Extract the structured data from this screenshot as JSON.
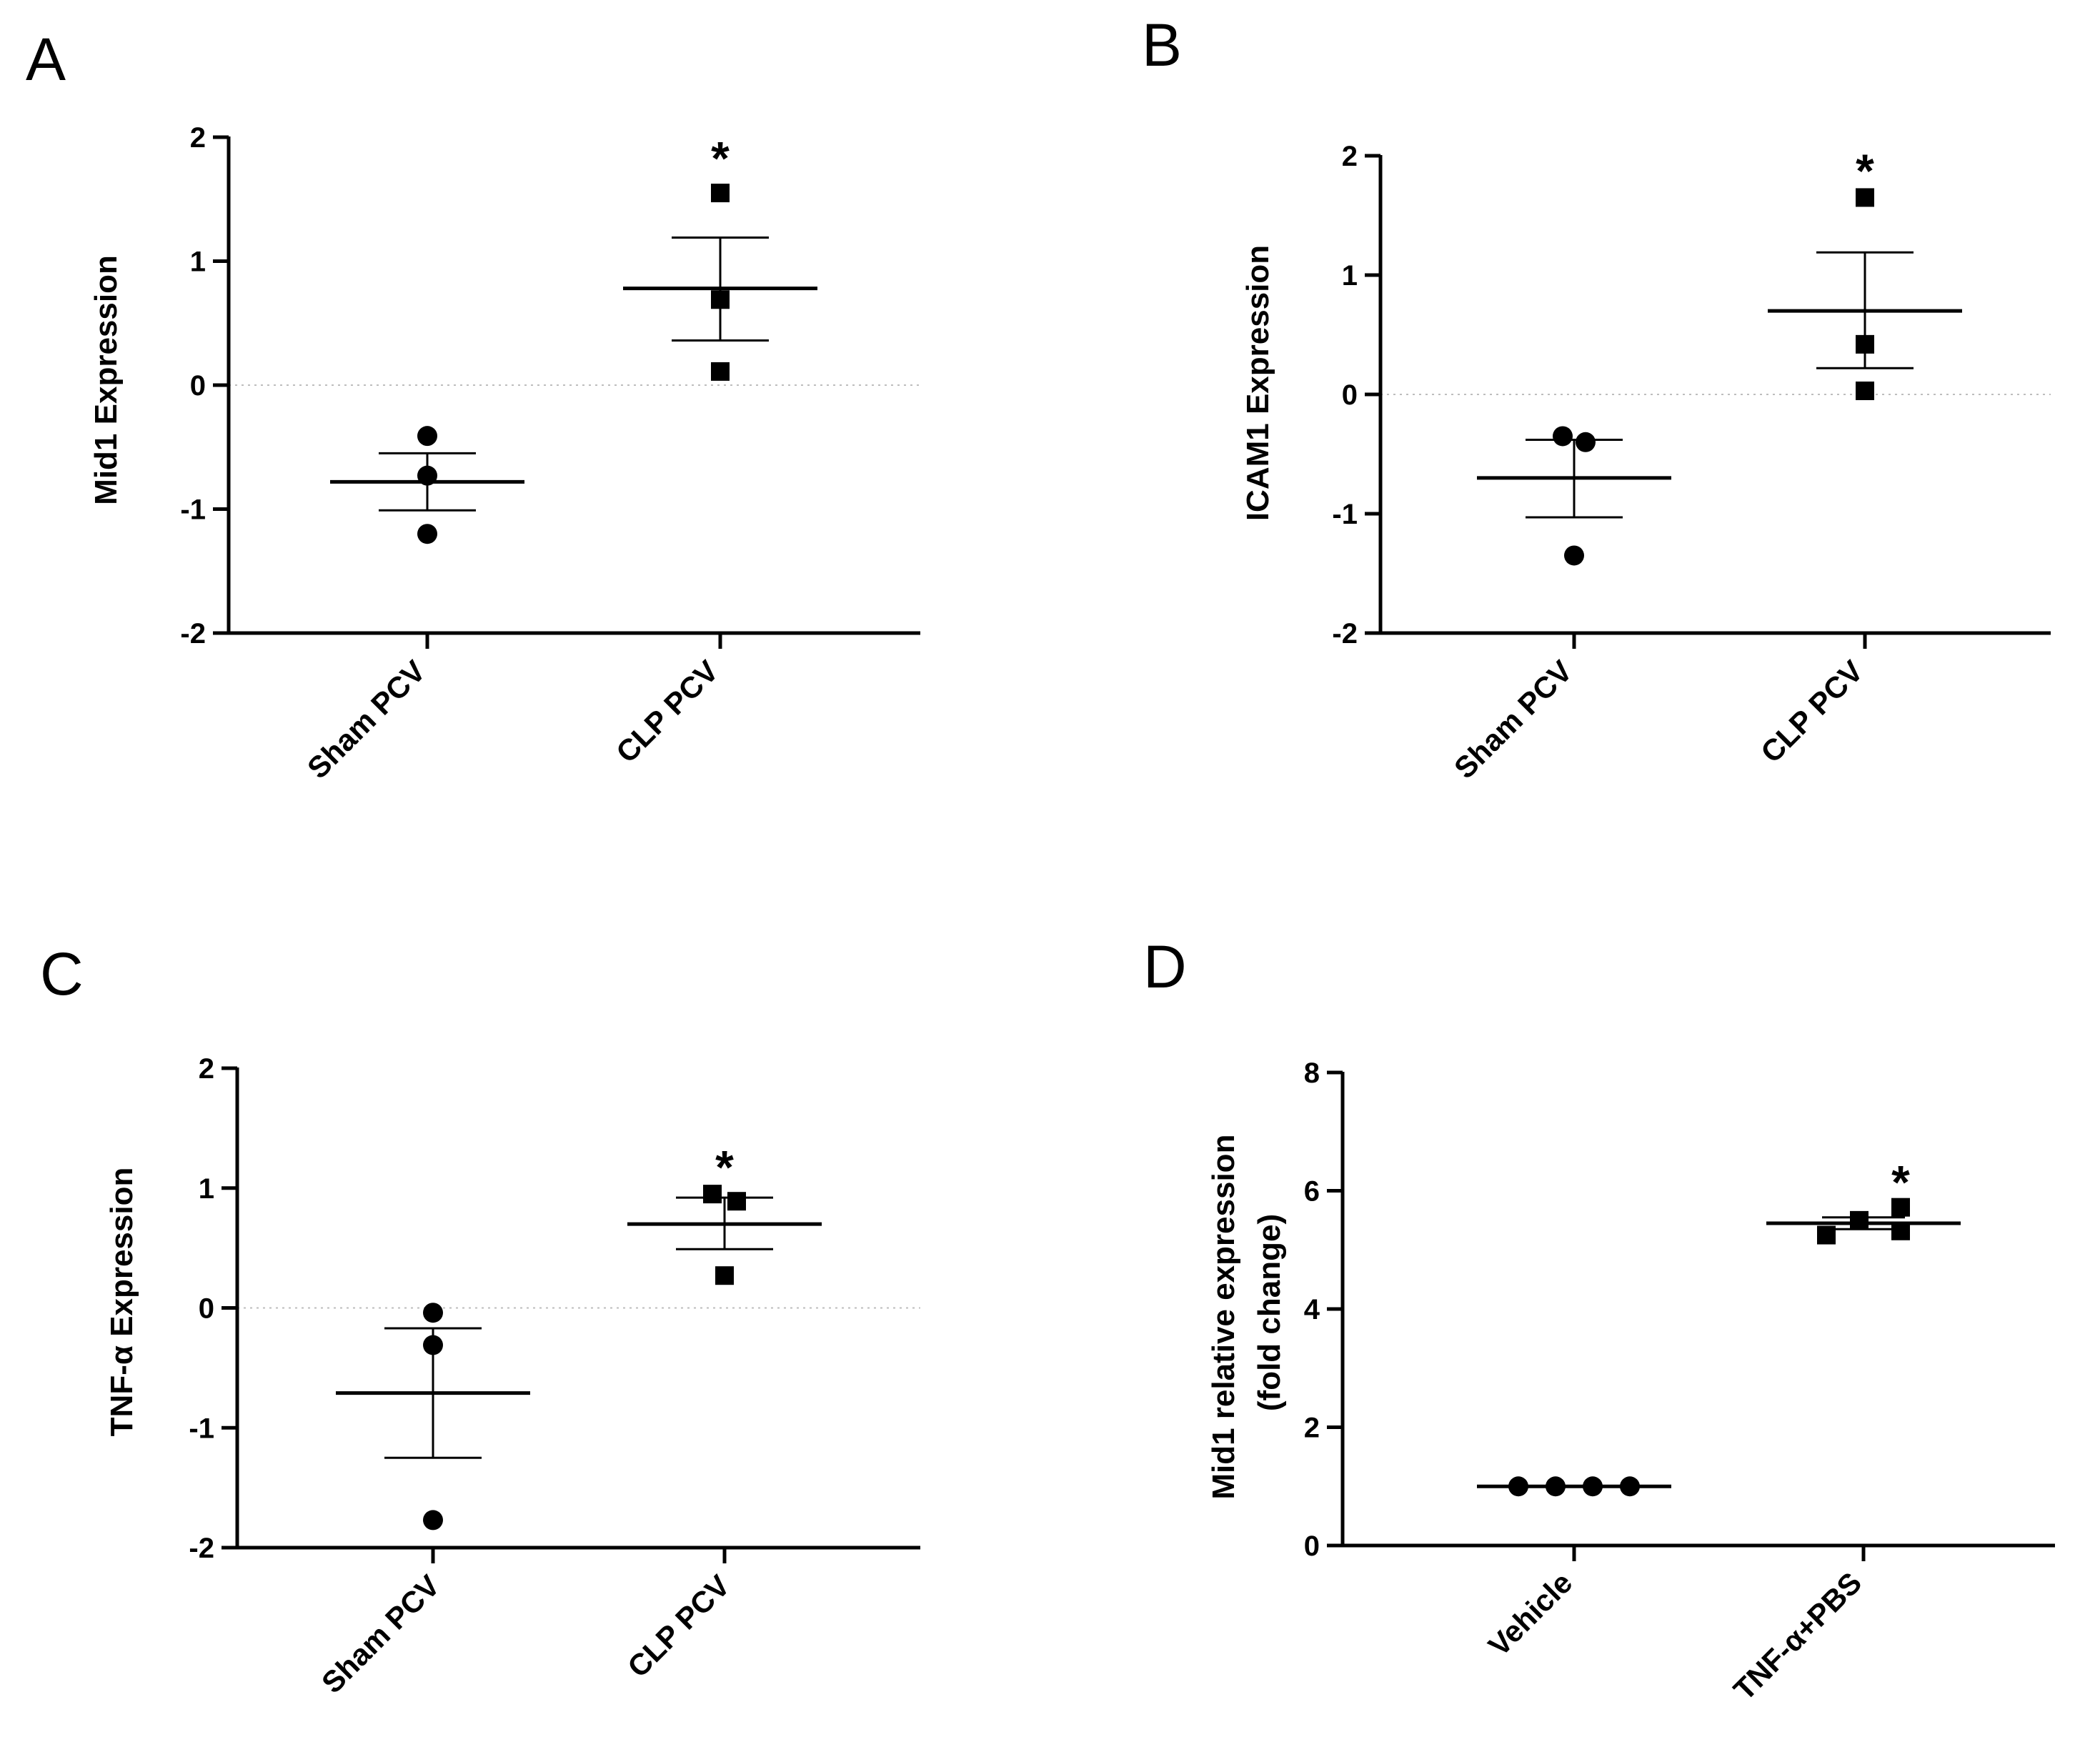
{
  "chart_data": [
    {
      "panel": "A",
      "type": "scatter",
      "ylabel": "Mid1 Expression",
      "ylabel_lines": [
        "Mid1 Expression"
      ],
      "ylim": [
        -2,
        2
      ],
      "yticks": [
        "2",
        "1",
        "0",
        "-1",
        "-2"
      ],
      "yticks_values": [
        2,
        1,
        0,
        -1,
        -2
      ],
      "zero_line": true,
      "categories": [
        "Sham PCV",
        "CLP PCV"
      ],
      "series": [
        {
          "name": "Sham PCV",
          "marker": "circle",
          "points": [
            -0.41,
            -0.73,
            -1.2
          ],
          "mean": -0.78,
          "sem_low": -1.01,
          "sem_high": -0.55
        },
        {
          "name": "CLP PCV",
          "marker": "square",
          "points": [
            1.55,
            0.69,
            0.11
          ],
          "mean": 0.78,
          "sem_low": 0.36,
          "sem_high": 1.19
        }
      ],
      "annotations": [
        {
          "category": "CLP PCV",
          "text": "*",
          "y": 1.95
        }
      ]
    },
    {
      "panel": "B",
      "type": "scatter",
      "ylabel": "ICAM1 Expression",
      "ylabel_lines": [
        "ICAM1 Expression"
      ],
      "ylim": [
        -2,
        2
      ],
      "yticks": [
        "2",
        "1",
        "0",
        "-1",
        "-2"
      ],
      "yticks_values": [
        2,
        1,
        0,
        -1,
        -2
      ],
      "zero_line": true,
      "categories": [
        "Sham PCV",
        "CLP PCV"
      ],
      "series": [
        {
          "name": "Sham PCV",
          "marker": "circle",
          "points": [
            -0.35,
            -0.4,
            -1.35
          ],
          "mean": -0.7,
          "sem_low": -1.03,
          "sem_high": -0.38
        },
        {
          "name": "CLP PCV",
          "marker": "square",
          "points": [
            1.65,
            0.42,
            0.03
          ],
          "mean": 0.7,
          "sem_low": 0.22,
          "sem_high": 1.19
        }
      ],
      "annotations": [
        {
          "category": "CLP PCV",
          "text": "*",
          "y": 2.0
        }
      ]
    },
    {
      "panel": "C",
      "type": "scatter",
      "ylabel": "TNF-α Expression",
      "ylabel_lines": [
        "TNF-α Expression"
      ],
      "ylim": [
        -2,
        2
      ],
      "yticks": [
        "2",
        "1",
        "0",
        "-1",
        "-2"
      ],
      "yticks_values": [
        2,
        1,
        0,
        -1,
        -2
      ],
      "zero_line": true,
      "categories": [
        "Sham PCV",
        "CLP PCV"
      ],
      "series": [
        {
          "name": "Sham PCV",
          "marker": "circle",
          "points": [
            -0.04,
            -0.31,
            -1.77
          ],
          "mean": -0.71,
          "sem_low": -1.25,
          "sem_high": -0.17
        },
        {
          "name": "CLP PCV",
          "marker": "square",
          "points": [
            0.95,
            0.89,
            0.27
          ],
          "mean": 0.7,
          "sem_low": 0.49,
          "sem_high": 0.92
        }
      ],
      "annotations": [
        {
          "category": "CLP PCV",
          "text": "*",
          "y": 1.3
        }
      ]
    },
    {
      "panel": "D",
      "type": "scatter",
      "ylabel": "Mid1 relative expression (fold change)",
      "ylabel_lines": [
        "Mid1 relative expression",
        "(fold change)"
      ],
      "ylim": [
        0,
        8
      ],
      "yticks": [
        "8",
        "6",
        "4",
        "2",
        "0"
      ],
      "yticks_values": [
        8,
        6,
        4,
        2,
        0
      ],
      "zero_line": false,
      "categories": [
        "Vehicle",
        "TNF-α+PBS"
      ],
      "series": [
        {
          "name": "Vehicle",
          "marker": "circle",
          "points": [
            1.0,
            1.0,
            1.0,
            1.0
          ],
          "mean": 1.0,
          "sem_low": 1.0,
          "sem_high": 1.0
        },
        {
          "name": "TNF-α+PBS",
          "marker": "square",
          "points": [
            5.25,
            5.5,
            5.72,
            5.32
          ],
          "mean": 5.45,
          "sem_low": 5.35,
          "sem_high": 5.55
        }
      ],
      "annotations": [
        {
          "category": "TNF-α+PBS",
          "text": "*",
          "y": 6.4
        }
      ]
    }
  ]
}
